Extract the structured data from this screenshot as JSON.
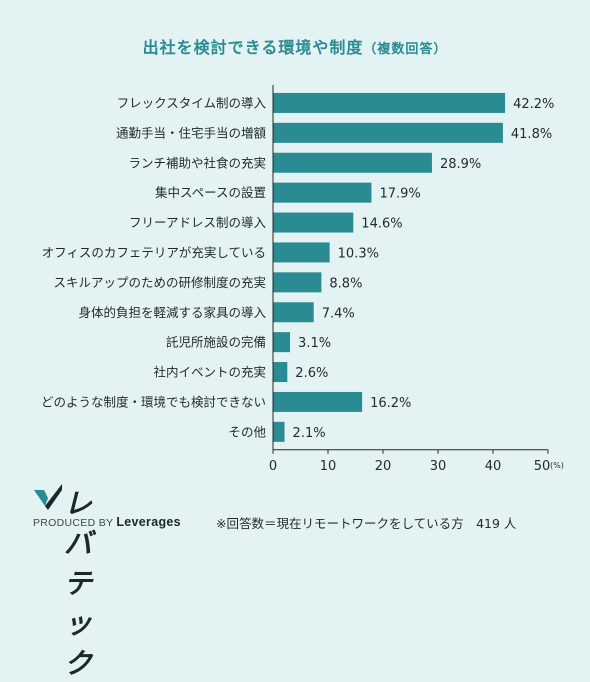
{
  "header": {
    "title": "出社を検討できる環境や制度",
    "subtitle": "（複数回答）"
  },
  "chart_data": {
    "type": "bar",
    "orientation": "horizontal",
    "categories": [
      "フレックスタイム制の導入",
      "通勤手当・住宅手当の増額",
      "ランチ補助や社食の充実",
      "集中スペースの設置",
      "フリーアドレス制の導入",
      "オフィスのカフェテリアが充実している",
      "スキルアップのための研修制度の充実",
      "身体的負担を軽減する家具の導入",
      "託児所施設の完備",
      "社内イベントの充実",
      "どのような制度・環境でも検討できない",
      "その他"
    ],
    "values": [
      42.2,
      41.8,
      28.9,
      17.9,
      14.6,
      10.3,
      8.8,
      7.4,
      3.1,
      2.6,
      16.2,
      2.1
    ],
    "value_labels": [
      "42.2%",
      "41.8%",
      "28.9%",
      "17.9%",
      "14.6%",
      "10.3%",
      "8.8%",
      "7.4%",
      "3.1%",
      "2.6%",
      "16.2%",
      "2.1%"
    ],
    "xlim": [
      0,
      50
    ],
    "x_ticks": [
      "0",
      "10",
      "20",
      "30",
      "40",
      "50"
    ],
    "x_unit": "(%)",
    "bar_color": "#2a8b93",
    "grid": false
  },
  "logo": {
    "name": "レバテック",
    "produced_by": "PRODUCED BY",
    "company": "Leverages"
  },
  "footnote": "※回答数＝現在リモートワークをしている方　419 人",
  "colors": {
    "background": "#e3f3f3",
    "accent": "#2a8b93",
    "text": "#1f2a2a"
  }
}
